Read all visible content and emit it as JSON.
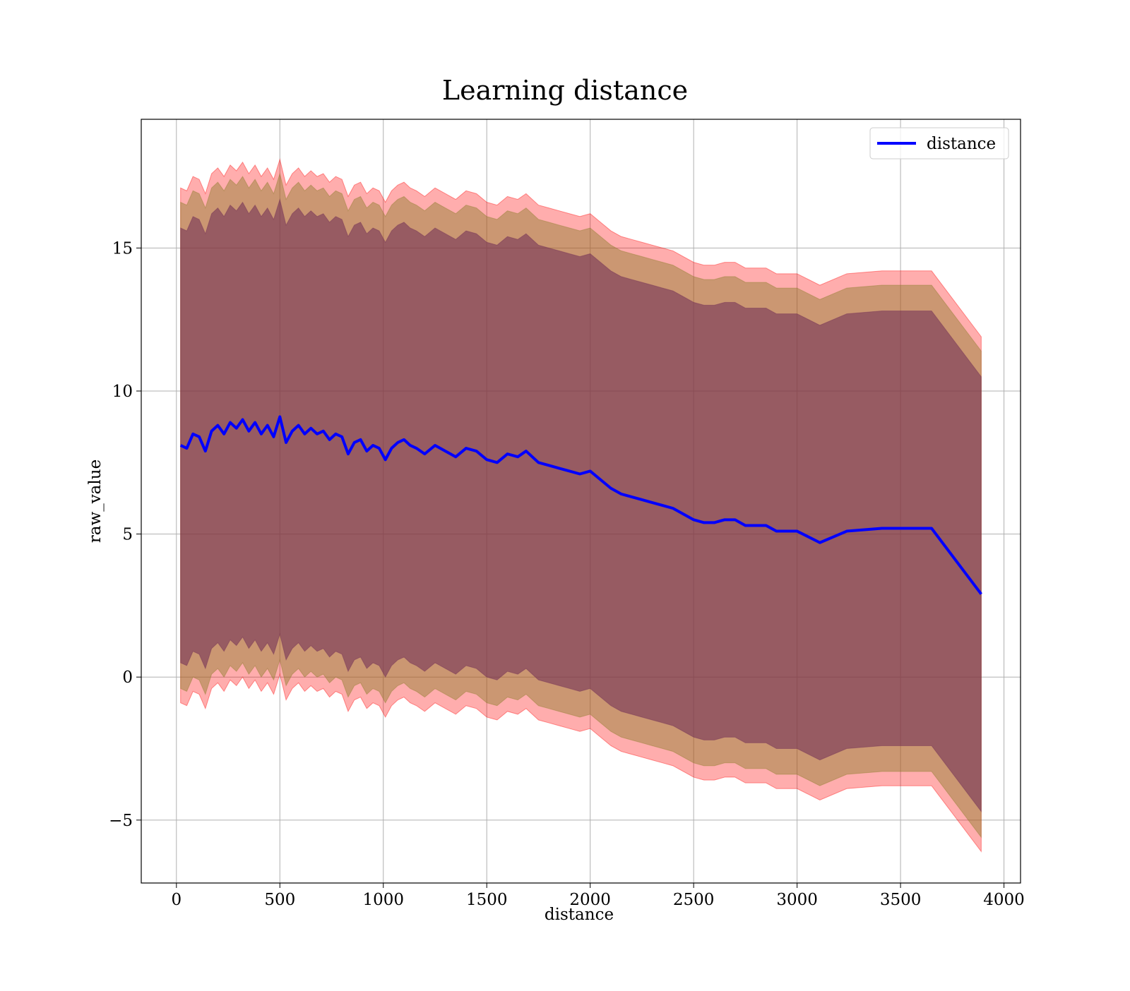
{
  "chart_data": {
    "type": "line",
    "title": "Learning distance",
    "xlabel": "distance",
    "ylabel": "raw_value",
    "xlim": [
      -170,
      4080
    ],
    "ylim": [
      -7.2,
      19.5
    ],
    "xticks": [
      0,
      500,
      1000,
      1500,
      2000,
      2500,
      3000,
      3500,
      4000
    ],
    "yticks": [
      -5,
      0,
      5,
      10,
      15
    ],
    "xtick_labels": [
      "0",
      "500",
      "1000",
      "1500",
      "2000",
      "2500",
      "3000",
      "3500",
      "4000"
    ],
    "ytick_labels": [
      "−5",
      "0",
      "5",
      "10",
      "15"
    ],
    "grid": true,
    "legend": {
      "position": "top-right",
      "entries": [
        "distance"
      ]
    },
    "colors": {
      "line": "#0000ff",
      "band_outer": "#ff0000",
      "band_middle": "#8b7d2a",
      "band_inner": "#6e2a55"
    },
    "x": [
      20,
      50,
      80,
      110,
      140,
      170,
      200,
      230,
      260,
      290,
      320,
      350,
      380,
      410,
      440,
      470,
      500,
      530,
      560,
      590,
      620,
      650,
      680,
      710,
      740,
      770,
      800,
      830,
      860,
      890,
      920,
      950,
      980,
      1010,
      1040,
      1070,
      1100,
      1130,
      1160,
      1200,
      1250,
      1300,
      1350,
      1400,
      1450,
      1500,
      1550,
      1600,
      1650,
      1690,
      1750,
      1800,
      1850,
      1900,
      1950,
      2000,
      2050,
      2100,
      2150,
      2200,
      2250,
      2300,
      2350,
      2400,
      2450,
      2500,
      2550,
      2600,
      2650,
      2700,
      2750,
      2800,
      2850,
      2900,
      3000,
      3110,
      3240,
      3410,
      3650,
      3890
    ],
    "series": [
      {
        "name": "distance",
        "values": [
          8.1,
          8.0,
          8.5,
          8.4,
          7.9,
          8.6,
          8.8,
          8.5,
          8.9,
          8.7,
          9.0,
          8.6,
          8.9,
          8.5,
          8.8,
          8.4,
          9.1,
          8.2,
          8.6,
          8.8,
          8.5,
          8.7,
          8.5,
          8.6,
          8.3,
          8.5,
          8.4,
          7.8,
          8.2,
          8.3,
          7.9,
          8.1,
          8.0,
          7.6,
          8.0,
          8.2,
          8.3,
          8.1,
          8.0,
          7.8,
          8.1,
          7.9,
          7.7,
          8.0,
          7.9,
          7.6,
          7.5,
          7.8,
          7.7,
          7.9,
          7.5,
          7.4,
          7.3,
          7.2,
          7.1,
          7.2,
          6.9,
          6.6,
          6.4,
          6.3,
          6.2,
          6.1,
          6.0,
          5.9,
          5.7,
          5.5,
          5.4,
          5.4,
          5.5,
          5.5,
          5.3,
          5.3,
          5.3,
          5.1,
          5.1,
          4.7,
          5.1,
          5.2,
          5.2,
          2.9
        ]
      }
    ],
    "bands": [
      {
        "label_hint": "outer",
        "upper_offset": 9.0,
        "lower_offset": -9.0
      },
      {
        "label_hint": "middle",
        "upper_offset": 8.5,
        "lower_offset": -8.5
      },
      {
        "label_hint": "inner",
        "upper_offset": 7.6,
        "lower_offset": -7.6
      }
    ]
  }
}
